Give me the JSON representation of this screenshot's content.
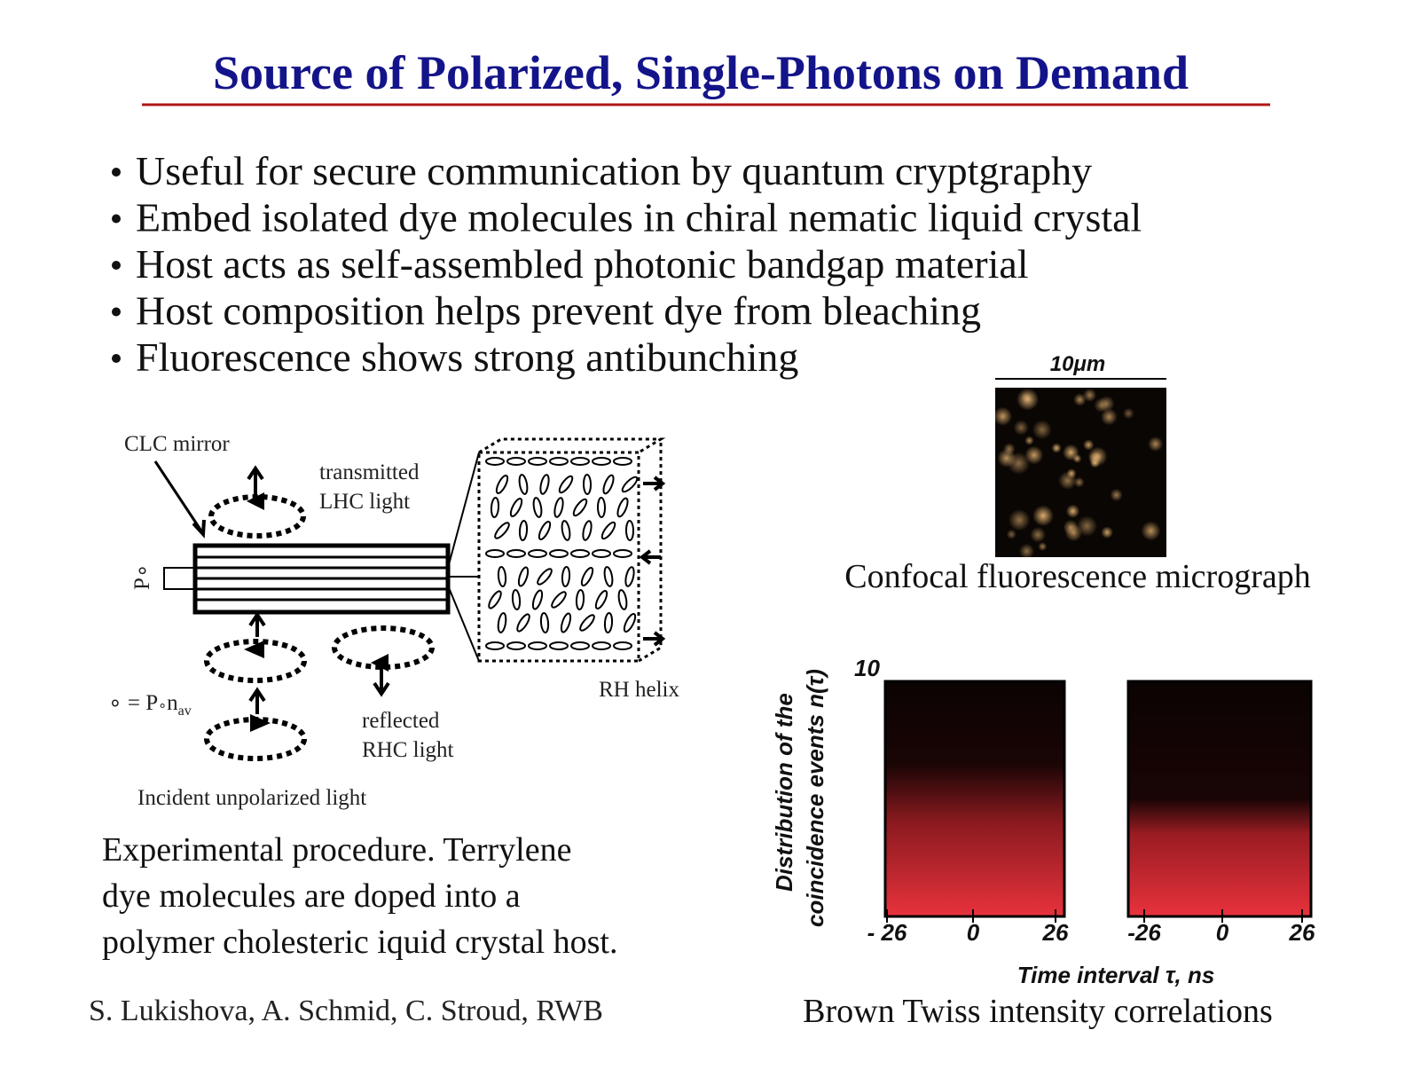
{
  "title": "Source of Polarized, Single-Photons on Demand",
  "bullets": [
    "Useful for secure communication by quantum cryptgraphy",
    "Embed isolated dye molecules in chiral nematic liquid crystal",
    "Host acts as self-assembled photonic bandgap material",
    "Host composition helps prevent dye from bleaching",
    "Fluorescence shows strong antibunching"
  ],
  "diagram": {
    "clc_mirror": "CLC mirror",
    "transmitted": "transmitted",
    "lhc_light": "LHC light",
    "p0": "P∘",
    "equation": [
      "∘ = P",
      "∘",
      "n",
      "av"
    ],
    "rh_helix": "RH helix",
    "reflected": "reflected",
    "rhc_light": "RHC light",
    "incident": "Incident unpolarized light"
  },
  "caption_left": [
    "Experimental procedure.  Terrylene",
    "dye molecules are doped into a",
    "polymer cholesteric iquid crystal host."
  ],
  "authors": "S. Lukishova, A. Schmid, C. Stroud, RWB",
  "micrograph": {
    "scale": "10μm",
    "caption": "Confocal fluorescence micrograph"
  },
  "correlation": {
    "y_label": [
      "Distribution of the",
      "coincidence events n(τ)"
    ],
    "y_top": "10",
    "x_ticks": [
      "- 26",
      "0",
      "26",
      "-26",
      "0",
      "26"
    ],
    "x_label": "Time interval τ, ns",
    "caption": "Brown Twiss intensity correlations"
  }
}
